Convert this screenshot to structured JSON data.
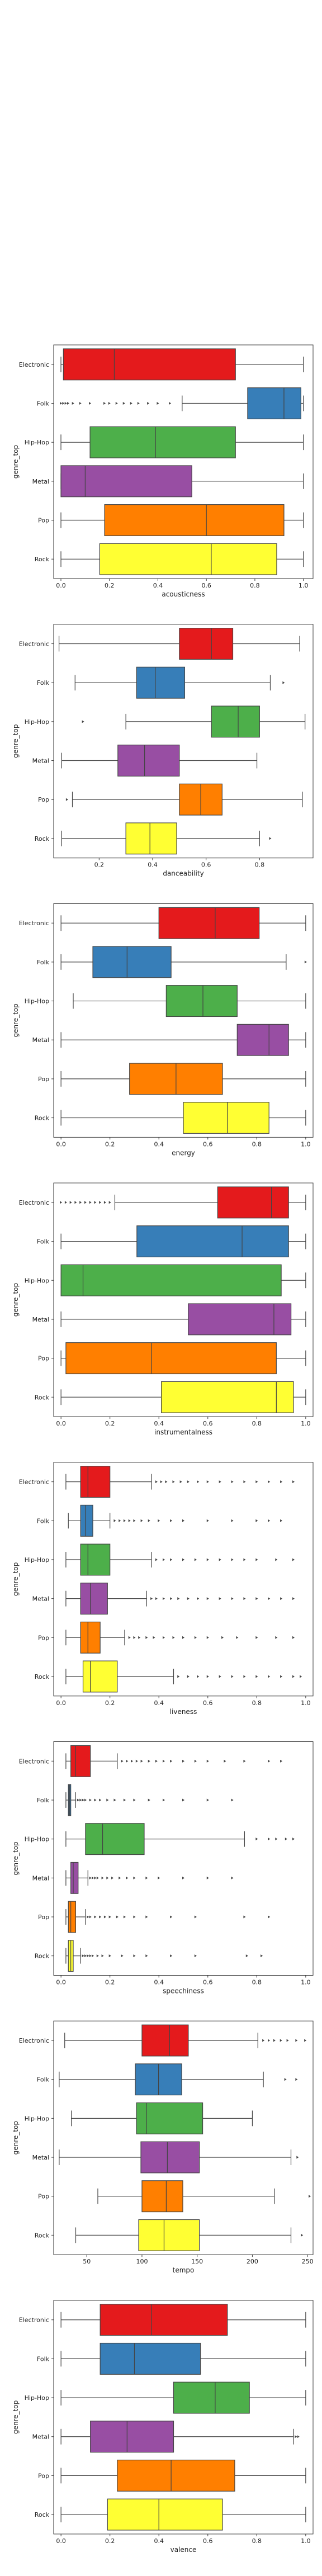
{
  "figure": {
    "background": "#ffffff"
  },
  "chart_data": [
    {
      "type": "box",
      "xlabel": "acousticness",
      "ylabel": "genre_top",
      "xlim": [
        -0.03,
        1.04
      ],
      "xticks": [
        0.0,
        0.2,
        0.4,
        0.6,
        0.8,
        1.0
      ],
      "xtick_labels": [
        "0.0",
        "0.2",
        "0.4",
        "0.6",
        "0.8",
        "1.0"
      ],
      "categories": [
        "Electronic",
        "Folk",
        "Hip-Hop",
        "Metal",
        "Pop",
        "Rock"
      ],
      "colors": [
        "#e41a1c",
        "#377eb8",
        "#4daf4a",
        "#984ea3",
        "#ff7f00",
        "#ffff33"
      ],
      "boxes": [
        {
          "whislo": 0.0,
          "q1": 0.01,
          "med": 0.22,
          "q3": 0.72,
          "whishi": 1.0,
          "fliers": []
        },
        {
          "whislo": 0.5,
          "q1": 0.77,
          "med": 0.92,
          "q3": 0.99,
          "whishi": 1.0,
          "fliers": [
            0.0,
            0.01,
            0.02,
            0.03,
            0.05,
            0.08,
            0.12,
            0.18,
            0.2,
            0.23,
            0.26,
            0.29,
            0.32,
            0.36,
            0.4,
            0.45
          ]
        },
        {
          "whislo": 0.0,
          "q1": 0.12,
          "med": 0.39,
          "q3": 0.72,
          "whishi": 1.0,
          "fliers": []
        },
        {
          "whislo": 0.0,
          "q1": 0.0,
          "med": 0.1,
          "q3": 0.54,
          "whishi": 1.0,
          "fliers": []
        },
        {
          "whislo": 0.0,
          "q1": 0.18,
          "med": 0.6,
          "q3": 0.92,
          "whishi": 1.0,
          "fliers": []
        },
        {
          "whislo": 0.0,
          "q1": 0.16,
          "med": 0.62,
          "q3": 0.89,
          "whishi": 1.0,
          "fliers": []
        }
      ]
    },
    {
      "type": "box",
      "xlabel": "danceability",
      "ylabel": "genre_top",
      "xlim": [
        0.03,
        1.0
      ],
      "xticks": [
        0.2,
        0.4,
        0.6,
        0.8
      ],
      "xtick_labels": [
        "0.2",
        "0.4",
        "0.6",
        "0.8"
      ],
      "categories": [
        "Electronic",
        "Folk",
        "Hip-Hop",
        "Metal",
        "Pop",
        "Rock"
      ],
      "colors": [
        "#e41a1c",
        "#377eb8",
        "#4daf4a",
        "#984ea3",
        "#ff7f00",
        "#ffff33"
      ],
      "boxes": [
        {
          "whislo": 0.05,
          "q1": 0.5,
          "med": 0.62,
          "q3": 0.7,
          "whishi": 0.95,
          "fliers": []
        },
        {
          "whislo": 0.11,
          "q1": 0.34,
          "med": 0.41,
          "q3": 0.52,
          "whishi": 0.84,
          "fliers": [
            0.89
          ]
        },
        {
          "whislo": 0.3,
          "q1": 0.62,
          "med": 0.72,
          "q3": 0.8,
          "whishi": 0.97,
          "fliers": [
            0.14
          ]
        },
        {
          "whislo": 0.06,
          "q1": 0.27,
          "med": 0.37,
          "q3": 0.5,
          "whishi": 0.79,
          "fliers": []
        },
        {
          "whislo": 0.1,
          "q1": 0.5,
          "med": 0.58,
          "q3": 0.66,
          "whishi": 0.96,
          "fliers": [
            0.08
          ]
        },
        {
          "whislo": 0.06,
          "q1": 0.3,
          "med": 0.39,
          "q3": 0.49,
          "whishi": 0.8,
          "fliers": [
            0.84
          ]
        }
      ]
    },
    {
      "type": "box",
      "xlabel": "energy",
      "ylabel": "genre_top",
      "xlim": [
        -0.03,
        1.03
      ],
      "xticks": [
        0.0,
        0.2,
        0.4,
        0.6,
        0.8,
        1.0
      ],
      "xtick_labels": [
        "0.0",
        "0.2",
        "0.4",
        "0.6",
        "0.8",
        "1.0"
      ],
      "categories": [
        "Electronic",
        "Folk",
        "Hip-Hop",
        "Metal",
        "Pop",
        "Rock"
      ],
      "colors": [
        "#e41a1c",
        "#377eb8",
        "#4daf4a",
        "#984ea3",
        "#ff7f00",
        "#ffff33"
      ],
      "boxes": [
        {
          "whislo": 0.0,
          "q1": 0.4,
          "med": 0.63,
          "q3": 0.81,
          "whishi": 1.0,
          "fliers": []
        },
        {
          "whislo": 0.0,
          "q1": 0.13,
          "med": 0.27,
          "q3": 0.45,
          "whishi": 0.92,
          "fliers": [
            1.0
          ]
        },
        {
          "whislo": 0.05,
          "q1": 0.43,
          "med": 0.58,
          "q3": 0.72,
          "whishi": 1.0,
          "fliers": []
        },
        {
          "whislo": 0.0,
          "q1": 0.72,
          "med": 0.85,
          "q3": 0.93,
          "whishi": 1.0,
          "fliers": []
        },
        {
          "whislo": 0.0,
          "q1": 0.28,
          "med": 0.47,
          "q3": 0.66,
          "whishi": 1.0,
          "fliers": []
        },
        {
          "whislo": 0.0,
          "q1": 0.5,
          "med": 0.68,
          "q3": 0.85,
          "whishi": 1.0,
          "fliers": []
        }
      ]
    },
    {
      "type": "box",
      "xlabel": "instrumentalness",
      "ylabel": "genre_top",
      "xlim": [
        -0.03,
        1.03
      ],
      "xticks": [
        0.0,
        0.2,
        0.4,
        0.6,
        0.8,
        1.0
      ],
      "xtick_labels": [
        "0.0",
        "0.2",
        "0.4",
        "0.6",
        "0.8",
        "1.0"
      ],
      "categories": [
        "Electronic",
        "Folk",
        "Hip-Hop",
        "Metal",
        "Pop",
        "Rock"
      ],
      "colors": [
        "#e41a1c",
        "#377eb8",
        "#4daf4a",
        "#984ea3",
        "#ff7f00",
        "#ffff33"
      ],
      "boxes": [
        {
          "whislo": 0.22,
          "q1": 0.64,
          "med": 0.86,
          "q3": 0.93,
          "whishi": 1.0,
          "fliers": [
            0.0,
            0.02,
            0.04,
            0.06,
            0.08,
            0.1,
            0.12,
            0.14,
            0.16,
            0.18,
            0.2
          ]
        },
        {
          "whislo": 0.0,
          "q1": 0.31,
          "med": 0.74,
          "q3": 0.93,
          "whishi": 1.0,
          "fliers": []
        },
        {
          "whislo": 0.0,
          "q1": 0.0,
          "med": 0.09,
          "q3": 0.9,
          "whishi": 1.0,
          "fliers": []
        },
        {
          "whislo": 0.0,
          "q1": 0.52,
          "med": 0.87,
          "q3": 0.94,
          "whishi": 1.0,
          "fliers": []
        },
        {
          "whislo": 0.0,
          "q1": 0.02,
          "med": 0.37,
          "q3": 0.88,
          "whishi": 1.0,
          "fliers": []
        },
        {
          "whislo": 0.0,
          "q1": 0.41,
          "med": 0.88,
          "q3": 0.95,
          "whishi": 1.0,
          "fliers": []
        }
      ]
    },
    {
      "type": "box",
      "xlabel": "liveness",
      "ylabel": "genre_top",
      "xlim": [
        -0.03,
        1.03
      ],
      "xticks": [
        0.0,
        0.2,
        0.4,
        0.6,
        0.8,
        1.0
      ],
      "xtick_labels": [
        "0.0",
        "0.2",
        "0.4",
        "0.6",
        "0.8",
        "1.0"
      ],
      "categories": [
        "Electronic",
        "Folk",
        "Hip-Hop",
        "Metal",
        "Pop",
        "Rock"
      ],
      "colors": [
        "#e41a1c",
        "#377eb8",
        "#4daf4a",
        "#984ea3",
        "#ff7f00",
        "#ffff33"
      ],
      "boxes": [
        {
          "whislo": 0.02,
          "q1": 0.08,
          "med": 0.11,
          "q3": 0.2,
          "whishi": 0.37,
          "fliers": [
            0.39,
            0.41,
            0.43,
            0.46,
            0.49,
            0.52,
            0.56,
            0.6,
            0.65,
            0.7,
            0.75,
            0.8,
            0.85,
            0.9,
            0.95
          ]
        },
        {
          "whislo": 0.03,
          "q1": 0.08,
          "med": 0.1,
          "q3": 0.13,
          "whishi": 0.2,
          "fliers": [
            0.22,
            0.24,
            0.26,
            0.28,
            0.3,
            0.33,
            0.36,
            0.4,
            0.45,
            0.5,
            0.6,
            0.7,
            0.8,
            0.85,
            0.9
          ]
        },
        {
          "whislo": 0.02,
          "q1": 0.08,
          "med": 0.11,
          "q3": 0.2,
          "whishi": 0.37,
          "fliers": [
            0.39,
            0.42,
            0.45,
            0.5,
            0.55,
            0.6,
            0.65,
            0.7,
            0.75,
            0.8,
            0.88,
            0.95
          ]
        },
        {
          "whislo": 0.02,
          "q1": 0.08,
          "med": 0.12,
          "q3": 0.19,
          "whishi": 0.35,
          "fliers": [
            0.37,
            0.39,
            0.42,
            0.45,
            0.48,
            0.52,
            0.56,
            0.6,
            0.65,
            0.7,
            0.75,
            0.8,
            0.85,
            0.9,
            0.95
          ]
        },
        {
          "whislo": 0.02,
          "q1": 0.08,
          "med": 0.11,
          "q3": 0.16,
          "whishi": 0.26,
          "fliers": [
            0.28,
            0.3,
            0.32,
            0.35,
            0.38,
            0.42,
            0.46,
            0.5,
            0.55,
            0.6,
            0.66,
            0.72,
            0.8,
            0.88,
            0.95
          ]
        },
        {
          "whislo": 0.02,
          "q1": 0.09,
          "med": 0.12,
          "q3": 0.23,
          "whishi": 0.46,
          "fliers": [
            0.48,
            0.52,
            0.56,
            0.6,
            0.65,
            0.7,
            0.75,
            0.8,
            0.85,
            0.9,
            0.95,
            0.98
          ]
        }
      ]
    },
    {
      "type": "box",
      "xlabel": "speechiness",
      "ylabel": "genre_top",
      "xlim": [
        -0.03,
        1.03
      ],
      "xticks": [
        0.0,
        0.2,
        0.4,
        0.6,
        0.8,
        1.0
      ],
      "xtick_labels": [
        "0.0",
        "0.2",
        "0.4",
        "0.6",
        "0.8",
        "1.0"
      ],
      "categories": [
        "Electronic",
        "Folk",
        "Hip-Hop",
        "Metal",
        "Pop",
        "Rock"
      ],
      "colors": [
        "#e41a1c",
        "#377eb8",
        "#4daf4a",
        "#984ea3",
        "#ff7f00",
        "#ffff33"
      ],
      "boxes": [
        {
          "whislo": 0.02,
          "q1": 0.04,
          "med": 0.06,
          "q3": 0.12,
          "whishi": 0.23,
          "fliers": [
            0.25,
            0.27,
            0.29,
            0.31,
            0.33,
            0.36,
            0.39,
            0.42,
            0.45,
            0.5,
            0.55,
            0.6,
            0.67,
            0.75,
            0.85,
            0.9
          ]
        },
        {
          "whislo": 0.02,
          "q1": 0.03,
          "med": 0.035,
          "q3": 0.04,
          "whishi": 0.06,
          "fliers": [
            0.07,
            0.08,
            0.09,
            0.1,
            0.12,
            0.14,
            0.16,
            0.19,
            0.22,
            0.26,
            0.3,
            0.36,
            0.42,
            0.5,
            0.6,
            0.7
          ]
        },
        {
          "whislo": 0.02,
          "q1": 0.1,
          "med": 0.17,
          "q3": 0.34,
          "whishi": 0.75,
          "fliers": [
            0.8,
            0.85,
            0.88,
            0.92,
            0.95
          ]
        },
        {
          "whislo": 0.02,
          "q1": 0.04,
          "med": 0.05,
          "q3": 0.07,
          "whishi": 0.11,
          "fliers": [
            0.12,
            0.13,
            0.14,
            0.15,
            0.17,
            0.19,
            0.21,
            0.24,
            0.27,
            0.3,
            0.35,
            0.4,
            0.5,
            0.6,
            0.7
          ]
        },
        {
          "whislo": 0.02,
          "q1": 0.03,
          "med": 0.04,
          "q3": 0.06,
          "whishi": 0.1,
          "fliers": [
            0.11,
            0.12,
            0.14,
            0.16,
            0.18,
            0.2,
            0.23,
            0.26,
            0.3,
            0.35,
            0.45,
            0.55,
            0.75,
            0.85
          ]
        },
        {
          "whislo": 0.02,
          "q1": 0.03,
          "med": 0.04,
          "q3": 0.05,
          "whishi": 0.08,
          "fliers": [
            0.09,
            0.1,
            0.11,
            0.12,
            0.13,
            0.15,
            0.17,
            0.2,
            0.25,
            0.3,
            0.35,
            0.45,
            0.55,
            0.76,
            0.82
          ]
        }
      ]
    },
    {
      "type": "box",
      "xlabel": "tempo",
      "ylabel": "genre_top",
      "xlim": [
        20,
        255
      ],
      "xticks": [
        50,
        100,
        150,
        200,
        250
      ],
      "xtick_labels": [
        "50",
        "100",
        "150",
        "200",
        "250"
      ],
      "categories": [
        "Electronic",
        "Folk",
        "Hip-Hop",
        "Metal",
        "Pop",
        "Rock"
      ],
      "colors": [
        "#e41a1c",
        "#377eb8",
        "#4daf4a",
        "#984ea3",
        "#ff7f00",
        "#ffff33"
      ],
      "boxes": [
        {
          "whislo": 30,
          "q1": 100,
          "med": 125,
          "q3": 142,
          "whishi": 205,
          "fliers": [
            210,
            215,
            220,
            226,
            232,
            240,
            248
          ]
        },
        {
          "whislo": 25,
          "q1": 94,
          "med": 115,
          "q3": 136,
          "whishi": 210,
          "fliers": [
            230,
            240
          ]
        },
        {
          "whislo": 36,
          "q1": 95,
          "med": 104,
          "q3": 155,
          "whishi": 200,
          "fliers": []
        },
        {
          "whislo": 25,
          "q1": 99,
          "med": 123,
          "q3": 152,
          "whishi": 235,
          "fliers": [
            241
          ]
        },
        {
          "whislo": 60,
          "q1": 100,
          "med": 122,
          "q3": 137,
          "whishi": 220,
          "fliers": [
            252
          ]
        },
        {
          "whislo": 40,
          "q1": 97,
          "med": 120,
          "q3": 152,
          "whishi": 235,
          "fliers": [
            245
          ]
        }
      ]
    },
    {
      "type": "box",
      "xlabel": "valence",
      "ylabel": "genre_top",
      "xlim": [
        -0.03,
        1.03
      ],
      "xticks": [
        0.0,
        0.2,
        0.4,
        0.6,
        0.8,
        1.0
      ],
      "xtick_labels": [
        "0.0",
        "0.2",
        "0.4",
        "0.6",
        "0.8",
        "1.0"
      ],
      "categories": [
        "Electronic",
        "Folk",
        "Hip-Hop",
        "Metal",
        "Pop",
        "Rock"
      ],
      "colors": [
        "#e41a1c",
        "#377eb8",
        "#4daf4a",
        "#984ea3",
        "#ff7f00",
        "#ffff33"
      ],
      "boxes": [
        {
          "whislo": 0.0,
          "q1": 0.16,
          "med": 0.37,
          "q3": 0.68,
          "whishi": 1.0,
          "fliers": []
        },
        {
          "whislo": 0.0,
          "q1": 0.16,
          "med": 0.3,
          "q3": 0.57,
          "whishi": 1.0,
          "fliers": []
        },
        {
          "whislo": 0.0,
          "q1": 0.46,
          "med": 0.63,
          "q3": 0.77,
          "whishi": 1.0,
          "fliers": []
        },
        {
          "whislo": 0.0,
          "q1": 0.12,
          "med": 0.27,
          "q3": 0.46,
          "whishi": 0.95,
          "fliers": [
            0.96,
            0.97
          ]
        },
        {
          "whislo": 0.0,
          "q1": 0.23,
          "med": 0.45,
          "q3": 0.71,
          "whishi": 1.0,
          "fliers": []
        },
        {
          "whislo": 0.0,
          "q1": 0.19,
          "med": 0.4,
          "q3": 0.66,
          "whishi": 1.0,
          "fliers": []
        }
      ]
    }
  ]
}
